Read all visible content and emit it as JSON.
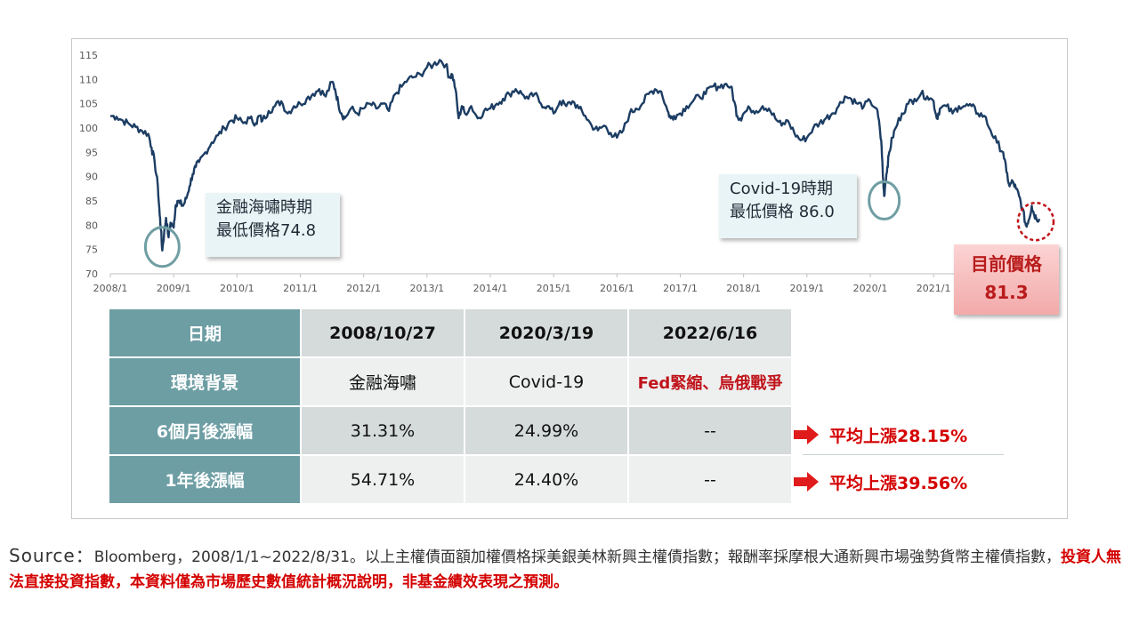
{
  "chart_data": {
    "type": "line",
    "x_tick_labels": [
      "2008/1",
      "2009/1",
      "2010/1",
      "2011/1",
      "2012/1",
      "2013/1",
      "2014/1",
      "2015/1",
      "2016/1",
      "2017/1",
      "2018/1",
      "2019/1",
      "2020/1",
      "2021/1"
    ],
    "y_tick_labels": [
      "115",
      "110",
      "105",
      "100",
      "95",
      "90",
      "85",
      "80",
      "75",
      "70"
    ],
    "ylim": [
      70,
      115
    ],
    "xlim": [
      2008.0,
      2022.67
    ],
    "series": [
      {
        "color": "#1c3d63",
        "points": [
          [
            2008.0,
            102.5
          ],
          [
            2008.1,
            102.3
          ],
          [
            2008.2,
            101.5
          ],
          [
            2008.3,
            100.8
          ],
          [
            2008.4,
            100.2
          ],
          [
            2008.5,
            99.4
          ],
          [
            2008.6,
            98.8
          ],
          [
            2008.65,
            96.0
          ],
          [
            2008.7,
            93.0
          ],
          [
            2008.75,
            88.0
          ],
          [
            2008.78,
            82.0
          ],
          [
            2008.8,
            79.0
          ],
          [
            2008.82,
            74.8
          ],
          [
            2008.85,
            78.5
          ],
          [
            2008.88,
            81.5
          ],
          [
            2008.92,
            77.5
          ],
          [
            2008.95,
            80.5
          ],
          [
            2009.0,
            79.5
          ],
          [
            2009.03,
            84.0
          ],
          [
            2009.06,
            85.0
          ],
          [
            2009.1,
            84.5
          ],
          [
            2009.15,
            84.0
          ],
          [
            2009.2,
            85.5
          ],
          [
            2009.25,
            88.0
          ],
          [
            2009.3,
            90.5
          ],
          [
            2009.35,
            92.0
          ],
          [
            2009.4,
            93.0
          ],
          [
            2009.5,
            95.0
          ],
          [
            2009.6,
            97.0
          ],
          [
            2009.7,
            98.5
          ],
          [
            2009.8,
            100.0
          ],
          [
            2009.9,
            101.5
          ],
          [
            2010.0,
            102.0
          ],
          [
            2010.1,
            101.0
          ],
          [
            2010.2,
            102.0
          ],
          [
            2010.3,
            101.0
          ],
          [
            2010.35,
            102.5
          ],
          [
            2010.4,
            101.5
          ],
          [
            2010.5,
            103.5
          ],
          [
            2010.6,
            104.5
          ],
          [
            2010.7,
            105.5
          ],
          [
            2010.8,
            103.0
          ],
          [
            2010.9,
            104.5
          ],
          [
            2011.0,
            105.0
          ],
          [
            2011.1,
            106.0
          ],
          [
            2011.2,
            107.0
          ],
          [
            2011.3,
            108.0
          ],
          [
            2011.4,
            106.5
          ],
          [
            2011.5,
            109.5
          ],
          [
            2011.55,
            108.0
          ],
          [
            2011.6,
            105.0
          ],
          [
            2011.65,
            103.0
          ],
          [
            2011.7,
            102.0
          ],
          [
            2011.8,
            104.0
          ],
          [
            2011.9,
            103.0
          ],
          [
            2012.0,
            104.0
          ],
          [
            2012.1,
            105.0
          ],
          [
            2012.2,
            104.0
          ],
          [
            2012.3,
            105.0
          ],
          [
            2012.4,
            103.5
          ],
          [
            2012.5,
            107.0
          ],
          [
            2012.6,
            108.5
          ],
          [
            2012.7,
            110.0
          ],
          [
            2012.8,
            110.5
          ],
          [
            2012.9,
            111.0
          ],
          [
            2013.0,
            112.5
          ],
          [
            2013.1,
            113.0
          ],
          [
            2013.2,
            114.0
          ],
          [
            2013.3,
            113.0
          ],
          [
            2013.35,
            110.5
          ],
          [
            2013.4,
            111.0
          ],
          [
            2013.45,
            108.0
          ],
          [
            2013.5,
            102.0
          ],
          [
            2013.55,
            104.5
          ],
          [
            2013.6,
            103.0
          ],
          [
            2013.7,
            104.5
          ],
          [
            2013.8,
            102.0
          ],
          [
            2013.9,
            103.5
          ],
          [
            2014.0,
            104.0
          ],
          [
            2014.1,
            105.0
          ],
          [
            2014.2,
            106.0
          ],
          [
            2014.3,
            107.0
          ],
          [
            2014.4,
            108.0
          ],
          [
            2014.5,
            107.0
          ],
          [
            2014.6,
            106.0
          ],
          [
            2014.7,
            107.0
          ],
          [
            2014.8,
            105.0
          ],
          [
            2014.9,
            104.5
          ],
          [
            2015.0,
            103.0
          ],
          [
            2015.1,
            105.5
          ],
          [
            2015.2,
            104.5
          ],
          [
            2015.3,
            105.5
          ],
          [
            2015.4,
            104.0
          ],
          [
            2015.5,
            102.5
          ],
          [
            2015.6,
            100.5
          ],
          [
            2015.7,
            99.5
          ],
          [
            2015.8,
            100.5
          ],
          [
            2015.9,
            99.0
          ],
          [
            2016.0,
            98.0
          ],
          [
            2016.1,
            99.5
          ],
          [
            2016.2,
            103.0
          ],
          [
            2016.3,
            104.0
          ],
          [
            2016.4,
            105.0
          ],
          [
            2016.5,
            107.0
          ],
          [
            2016.6,
            108.0
          ],
          [
            2016.7,
            107.5
          ],
          [
            2016.8,
            103.5
          ],
          [
            2016.85,
            102.0
          ],
          [
            2016.9,
            102.5
          ],
          [
            2017.0,
            103.0
          ],
          [
            2017.1,
            104.5
          ],
          [
            2017.2,
            105.5
          ],
          [
            2017.3,
            106.5
          ],
          [
            2017.4,
            107.0
          ],
          [
            2017.5,
            108.5
          ],
          [
            2017.6,
            108.5
          ],
          [
            2017.7,
            109.0
          ],
          [
            2017.8,
            108.5
          ],
          [
            2017.85,
            105.5
          ],
          [
            2017.9,
            102.5
          ],
          [
            2017.95,
            102.0
          ],
          [
            2018.0,
            103.0
          ],
          [
            2018.1,
            104.0
          ],
          [
            2018.2,
            103.5
          ],
          [
            2018.3,
            104.5
          ],
          [
            2018.4,
            104.0
          ],
          [
            2018.5,
            102.0
          ],
          [
            2018.6,
            100.5
          ],
          [
            2018.7,
            101.5
          ],
          [
            2018.8,
            99.0
          ],
          [
            2018.9,
            97.5
          ],
          [
            2019.0,
            98.0
          ],
          [
            2019.1,
            100.0
          ],
          [
            2019.2,
            101.0
          ],
          [
            2019.3,
            102.0
          ],
          [
            2019.4,
            103.0
          ],
          [
            2019.5,
            104.5
          ],
          [
            2019.6,
            106.5
          ],
          [
            2019.7,
            106.0
          ],
          [
            2019.8,
            105.0
          ],
          [
            2019.9,
            104.5
          ],
          [
            2020.0,
            105.5
          ],
          [
            2020.1,
            104.0
          ],
          [
            2020.15,
            100.0
          ],
          [
            2020.18,
            96.0
          ],
          [
            2020.2,
            90.0
          ],
          [
            2020.22,
            86.0
          ],
          [
            2020.24,
            89.0
          ],
          [
            2020.27,
            92.0
          ],
          [
            2020.3,
            95.0
          ],
          [
            2020.35,
            98.0
          ],
          [
            2020.4,
            100.0
          ],
          [
            2020.5,
            103.0
          ],
          [
            2020.6,
            105.0
          ],
          [
            2020.7,
            106.0
          ],
          [
            2020.8,
            107.0
          ],
          [
            2020.9,
            106.5
          ],
          [
            2021.0,
            105.5
          ],
          [
            2021.05,
            102.0
          ],
          [
            2021.1,
            104.0
          ],
          [
            2021.2,
            104.5
          ],
          [
            2021.3,
            103.0
          ],
          [
            2021.4,
            104.5
          ],
          [
            2021.5,
            104.5
          ],
          [
            2021.6,
            104.5
          ],
          [
            2021.7,
            103.0
          ],
          [
            2021.8,
            102.5
          ],
          [
            2021.9,
            99.5
          ],
          [
            2022.0,
            97.0
          ],
          [
            2022.1,
            95.0
          ],
          [
            2022.15,
            91.0
          ],
          [
            2022.2,
            88.0
          ],
          [
            2022.25,
            89.0
          ],
          [
            2022.3,
            87.5
          ],
          [
            2022.35,
            86.0
          ],
          [
            2022.4,
            83.5
          ],
          [
            2022.45,
            80.5
          ],
          [
            2022.46,
            80.0
          ],
          [
            2022.5,
            81.0
          ],
          [
            2022.55,
            84.0
          ],
          [
            2022.58,
            82.5
          ],
          [
            2022.62,
            81.5
          ],
          [
            2022.67,
            81.3
          ]
        ]
      }
    ],
    "annotations": [
      {
        "lines": [
          "金融海嘯時期",
          "最低價格74.8"
        ],
        "x": 2008.82,
        "y": 74.8
      },
      {
        "lines": [
          "Covid-19時期",
          "最低價格 86.0"
        ],
        "x": 2020.22,
        "y": 86.0
      },
      {
        "lines": [
          "目前價格",
          "81.3"
        ],
        "x": 2022.67,
        "y": 81.3
      }
    ],
    "grid": false,
    "title": "",
    "xlabel": "",
    "ylabel": ""
  },
  "table": {
    "rows": [
      {
        "label": "日期",
        "cells": [
          "2008/10/27",
          "2020/3/19",
          "2022/6/16"
        ]
      },
      {
        "label": "環境背景",
        "cells": [
          "金融海嘯",
          "Covid-19",
          "Fed緊縮、烏俄戰爭"
        ]
      },
      {
        "label": "6個月後漲幅",
        "cells": [
          "31.31%",
          "24.99%",
          "--"
        ]
      },
      {
        "label": "1年後漲幅",
        "cells": [
          "54.71%",
          "24.40%",
          "--"
        ]
      }
    ]
  },
  "averages": [
    "平均上漲28.15%",
    "平均上漲39.56%"
  ],
  "source": {
    "lead": "Source：",
    "text": "Bloomberg，2008/1/1~2022/8/31。以上主權債面額加權價格採美銀美林新興主權債指數；報酬率採摩根大通新興市場強勢貨幣主權債指數，",
    "warning": "投資人無法直接投資指數，本資料僅為市場歷史數值統計概況說明，非基金績效表現之預測。"
  },
  "colors": {
    "line": "#1c3d63",
    "highlight_circle": "#6f9ea3",
    "current_circle": "#c0141b",
    "table_header": "#6d9ea4",
    "warning_text": "#d40000"
  }
}
